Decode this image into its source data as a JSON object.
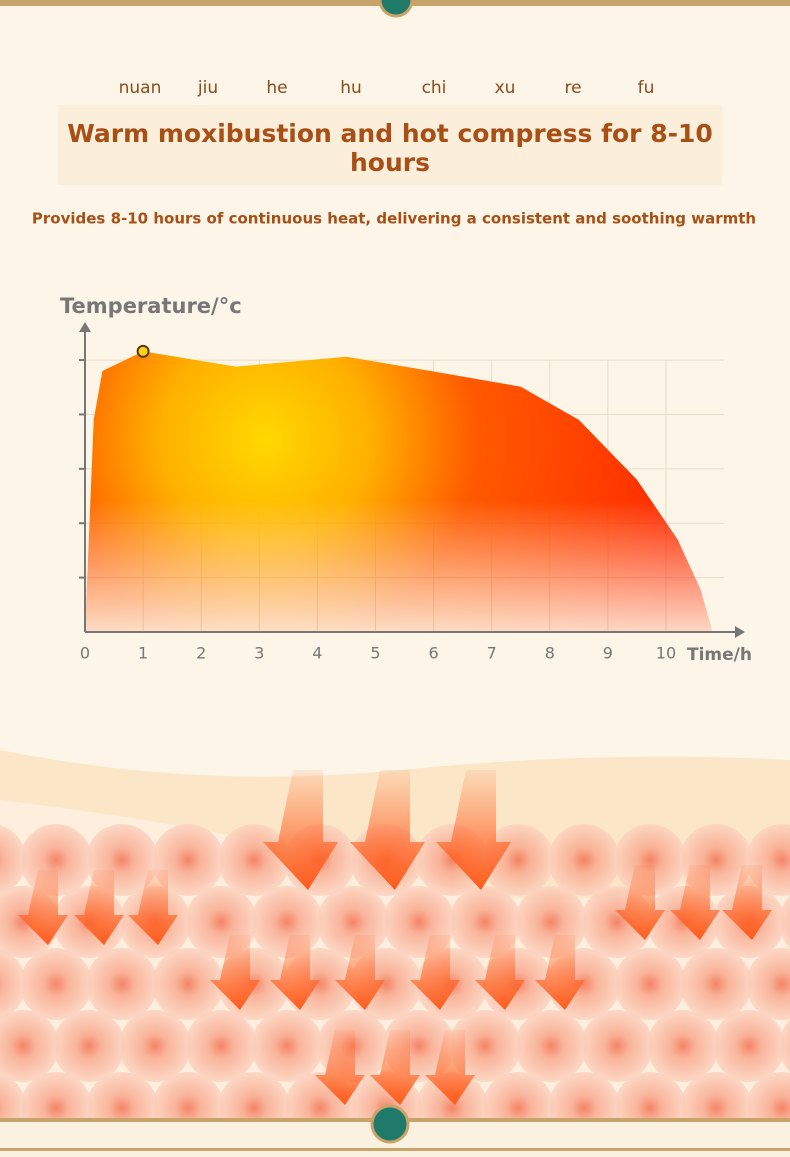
{
  "header": {
    "pinyin": [
      "nuan",
      "jiu",
      "he",
      "hu",
      "chi",
      "xu",
      "re",
      "fu"
    ],
    "title": "Warm moxibustion and hot compress for 8-10 hours",
    "subtitle": "Provides 8-10 hours of continuous heat, delivering a consistent and soothing warmth"
  },
  "chart_data": {
    "type": "area",
    "ylabel": "Temperature/°c",
    "xlabel": "Time/h",
    "x": [
      0,
      0.15,
      0.3,
      1,
      2.6,
      4.5,
      6,
      7.5,
      8.5,
      9.5,
      10.2,
      10.6,
      10.8
    ],
    "values": [
      0,
      3.9,
      4.8,
      5.16,
      4.88,
      5.06,
      4.79,
      4.51,
      3.9,
      2.8,
      1.7,
      0.77,
      0
    ],
    "marker": {
      "x": 1,
      "value": 5.16
    },
    "xlim": [
      0,
      11.36
    ],
    "ylim": [
      0,
      5.7
    ],
    "xticks": [
      0,
      1,
      2,
      3,
      4,
      5,
      6,
      7,
      8,
      9,
      10
    ],
    "yticks": [
      1,
      2,
      3,
      4,
      5
    ],
    "grid": true,
    "color": "#ff3a00"
  }
}
